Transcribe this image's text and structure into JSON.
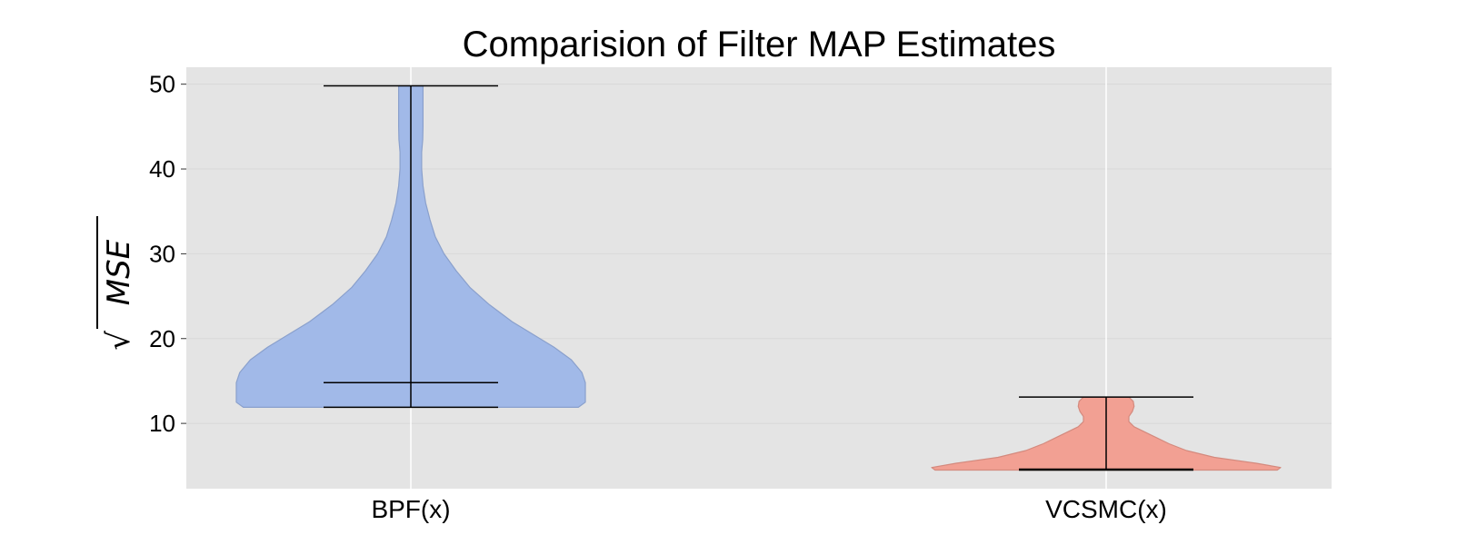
{
  "chart_data": {
    "type": "violin",
    "title": "Comparision of Filter MAP Estimates",
    "xlabel": "",
    "ylabel_radical": "√",
    "ylabel": "MSE",
    "ylim": [
      2.3,
      52
    ],
    "yticks": [
      10,
      20,
      30,
      40,
      50
    ],
    "grid": true,
    "categories": [
      "BPF(x)",
      "VCSMC(x)"
    ],
    "series": [
      {
        "category": "BPF(x)",
        "min": 11.9,
        "median": 14.8,
        "max": 49.8,
        "color": "#a1b9e8",
        "edge_color": "#8aa0cc",
        "density": [
          [
            11.9,
            0.96
          ],
          [
            12.5,
            1.0
          ],
          [
            13.5,
            1.0
          ],
          [
            14.8,
            1.0
          ],
          [
            16.0,
            0.98
          ],
          [
            17.5,
            0.92
          ],
          [
            19.0,
            0.82
          ],
          [
            20.5,
            0.7
          ],
          [
            22.0,
            0.58
          ],
          [
            24.0,
            0.45
          ],
          [
            26.0,
            0.34
          ],
          [
            28.0,
            0.26
          ],
          [
            30.0,
            0.19
          ],
          [
            32.0,
            0.14
          ],
          [
            34.0,
            0.11
          ],
          [
            36.0,
            0.085
          ],
          [
            38.0,
            0.07
          ],
          [
            40.0,
            0.062
          ],
          [
            42.0,
            0.062
          ],
          [
            43.5,
            0.068
          ],
          [
            45.0,
            0.07
          ],
          [
            46.5,
            0.07
          ],
          [
            48.0,
            0.07
          ],
          [
            49.8,
            0.07
          ]
        ]
      },
      {
        "category": "VCSMC(x)",
        "min": 4.5,
        "median": 4.6,
        "max": 13.1,
        "color": "#f2a093",
        "edge_color": "#d48a7e",
        "density": [
          [
            4.5,
            0.98
          ],
          [
            4.8,
            1.0
          ],
          [
            5.3,
            0.86
          ],
          [
            6.0,
            0.62
          ],
          [
            6.8,
            0.46
          ],
          [
            7.6,
            0.36
          ],
          [
            8.4,
            0.28
          ],
          [
            9.0,
            0.22
          ],
          [
            9.6,
            0.16
          ],
          [
            10.2,
            0.13
          ],
          [
            10.8,
            0.13
          ],
          [
            11.4,
            0.15
          ],
          [
            12.0,
            0.16
          ],
          [
            12.6,
            0.155
          ],
          [
            13.1,
            0.13
          ]
        ]
      }
    ]
  }
}
